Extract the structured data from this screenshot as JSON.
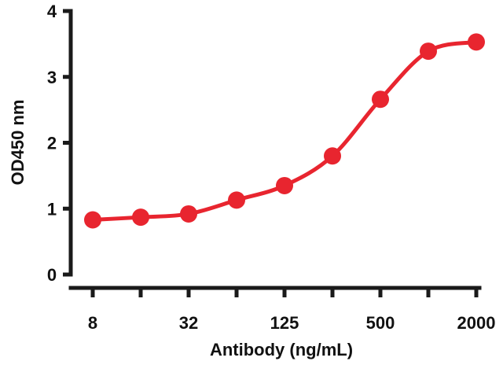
{
  "chart_data": {
    "type": "line",
    "x_scale": "log2",
    "xlabel": "Antibody (ng/mL)",
    "ylabel": "OD450 nm",
    "ylim": [
      0,
      4
    ],
    "y_ticks": [
      "0",
      "1",
      "2",
      "3",
      "4"
    ],
    "x_ticks": [
      {
        "value": 8,
        "label": "8"
      },
      {
        "value": 16,
        "label": ""
      },
      {
        "value": 32,
        "label": "32"
      },
      {
        "value": 62.5,
        "label": ""
      },
      {
        "value": 125,
        "label": "125"
      },
      {
        "value": 250,
        "label": ""
      },
      {
        "value": 500,
        "label": "500"
      },
      {
        "value": 1000,
        "label": ""
      },
      {
        "value": 2000,
        "label": "2000"
      }
    ],
    "series": [
      {
        "color": "#e8252f",
        "points": [
          {
            "x": 8,
            "y": 0.83
          },
          {
            "x": 16,
            "y": 0.87
          },
          {
            "x": 32,
            "y": 0.92
          },
          {
            "x": 62.5,
            "y": 1.13
          },
          {
            "x": 125,
            "y": 1.35
          },
          {
            "x": 250,
            "y": 1.8
          },
          {
            "x": 500,
            "y": 2.66
          },
          {
            "x": 1000,
            "y": 3.39
          },
          {
            "x": 2000,
            "y": 3.53
          }
        ]
      }
    ],
    "grid": false,
    "legend": "none"
  }
}
